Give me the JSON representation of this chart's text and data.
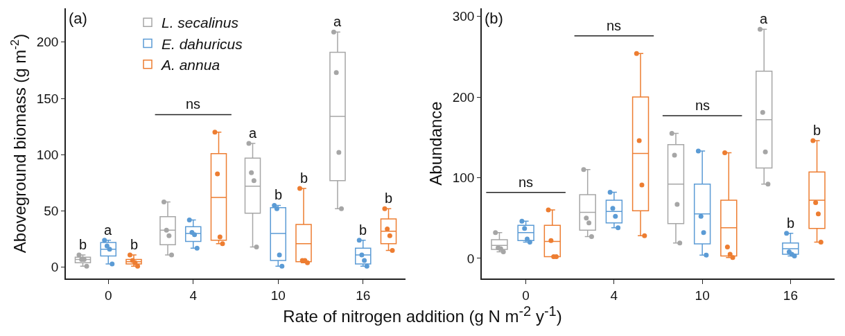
{
  "chart_data": [
    {
      "type": "box",
      "title": "(a)",
      "xlabel": "Rate of nitrogen addition (g N m$^{-2}$ y$^{-1}$)",
      "ylabel": "Aboveground biomass (g m$^{-2}$)",
      "categories": [
        "0",
        "4",
        "10",
        "16"
      ],
      "ylim": [
        -10,
        230
      ],
      "yticks": [
        0,
        50,
        100,
        150,
        200
      ],
      "grid": false,
      "legend": "top left",
      "marker": "circle",
      "annotations": [
        "ns"
      ],
      "series": [
        {
          "name": "L. secalinus",
          "color": "#a6a6a6",
          "value_labels": [
            "b",
            null,
            "a",
            "a"
          ],
          "boxes": [
            {
              "low": 1,
              "q1": 4,
              "median": 7,
              "q3": 9,
              "high": 11
            },
            {
              "low": 11,
              "q1": 20,
              "median": 33,
              "q3": 45,
              "high": 58
            },
            {
              "low": 18,
              "q1": 48,
              "median": 72,
              "q3": 97,
              "high": 110
            },
            {
              "low": 52,
              "q1": 77,
              "median": 134,
              "q3": 191,
              "high": 209
            }
          ]
        },
        {
          "type": "scatter",
          "color": "#a6a6a6",
          "x": [
            "0",
            "0",
            "0",
            "0",
            "4",
            "4",
            "4",
            "4",
            "10",
            "10",
            "10",
            "10",
            "16",
            "16",
            "16",
            "16"
          ],
          "values": [
            11,
            7,
            7,
            1,
            58,
            33,
            28,
            11,
            110,
            84,
            77,
            18,
            209,
            173,
            102,
            52
          ]
        },
        {
          "name": "E. dahuricus",
          "color": "#5b9bd5",
          "value_labels": [
            "a",
            null,
            "b",
            "b"
          ],
          "boxes": [
            {
              "low": 3,
              "q1": 10,
              "median": 16,
              "q3": 22,
              "high": 24
            },
            {
              "low": 17,
              "q1": 23,
              "median": 30,
              "q3": 36,
              "high": 42
            },
            {
              "low": 1,
              "q1": 6,
              "median": 30,
              "q3": 53,
              "high": 55
            },
            {
              "low": 1,
              "q1": 3,
              "median": 11,
              "q3": 17,
              "high": 24
            }
          ]
        },
        {
          "type": "scatter",
          "color": "#5b9bd5",
          "x": [
            "0",
            "0",
            "0",
            "0",
            "4",
            "4",
            "4",
            "4",
            "10",
            "10",
            "10",
            "10",
            "16",
            "16",
            "16",
            "16"
          ],
          "values": [
            24,
            19,
            16,
            3,
            42,
            31,
            29,
            17,
            55,
            52,
            11,
            1,
            24,
            11,
            6,
            1
          ]
        },
        {
          "name": "A. annua",
          "color": "#ed7d31",
          "value_labels": [
            "b",
            null,
            "b",
            "b"
          ],
          "boxes": [
            {
              "low": 1,
              "q1": 3,
              "median": 5,
              "q3": 7,
              "high": 11
            },
            {
              "low": 21,
              "q1": 24,
              "median": 62,
              "q3": 101,
              "high": 120
            },
            {
              "low": 4,
              "q1": 5,
              "median": 21,
              "q3": 38,
              "high": 70
            },
            {
              "low": 15,
              "q1": 21,
              "median": 32,
              "q3": 43,
              "high": 52
            }
          ]
        },
        {
          "type": "scatter",
          "color": "#ed7d31",
          "x": [
            "0",
            "0",
            "0",
            "0",
            "4",
            "4",
            "4",
            "4",
            "10",
            "10",
            "10",
            "10",
            "16",
            "16",
            "16",
            "16"
          ],
          "values": [
            11,
            6,
            4,
            1,
            120,
            83,
            27,
            21,
            70,
            6,
            6,
            4,
            52,
            34,
            28,
            15
          ]
        }
      ]
    },
    {
      "type": "box",
      "title": "(b)",
      "ylabel": "Abundance",
      "categories": [
        "0",
        "4",
        "10",
        "16"
      ],
      "ylim": [
        -25,
        310
      ],
      "yticks": [
        0,
        100,
        200,
        300
      ],
      "grid": false,
      "marker": "circle",
      "annotations": [
        "ns",
        "ns",
        "ns"
      ],
      "series": [
        {
          "color": "#a6a6a6",
          "value_labels": [
            null,
            null,
            null,
            "a"
          ],
          "boxes": [
            {
              "low": 8,
              "q1": 11,
              "median": 16,
              "q3": 23,
              "high": 32
            },
            {
              "low": 27,
              "q1": 35,
              "median": 57,
              "q3": 79,
              "high": 110
            },
            {
              "low": 19,
              "q1": 43,
              "median": 92,
              "q3": 141,
              "high": 155
            },
            {
              "low": 92,
              "q1": 112,
              "median": 172,
              "q3": 232,
              "high": 284
            }
          ]
        },
        {
          "type": "scatter",
          "color": "#a6a6a6",
          "x": [
            "0",
            "0",
            "0",
            "0",
            "4",
            "4",
            "4",
            "4",
            "10",
            "10",
            "10",
            "10",
            "16",
            "16",
            "16",
            "16"
          ],
          "values": [
            32,
            13,
            12,
            8,
            110,
            50,
            44,
            27,
            155,
            128,
            67,
            19,
            284,
            181,
            132,
            92
          ]
        },
        {
          "color": "#5b9bd5",
          "value_labels": [
            null,
            null,
            null,
            "b"
          ],
          "boxes": [
            {
              "low": 20,
              "q1": 22,
              "median": 32,
              "q3": 41,
              "high": 46
            },
            {
              "low": 38,
              "q1": 44,
              "median": 58,
              "q3": 72,
              "high": 82
            },
            {
              "low": 4,
              "q1": 18,
              "median": 55,
              "q3": 92,
              "high": 133
            },
            {
              "low": 3,
              "q1": 5,
              "median": 12,
              "q3": 19,
              "high": 31
            }
          ]
        },
        {
          "type": "scatter",
          "color": "#5b9bd5",
          "x": [
            "0",
            "0",
            "0",
            "0",
            "4",
            "4",
            "4",
            "4",
            "10",
            "10",
            "10",
            "10",
            "16",
            "16",
            "16",
            "16"
          ],
          "values": [
            46,
            37,
            24,
            20,
            82,
            62,
            52,
            38,
            133,
            52,
            32,
            4,
            31,
            8,
            5,
            3
          ]
        },
        {
          "color": "#ed7d31",
          "value_labels": [
            null,
            null,
            null,
            "b"
          ],
          "boxes": [
            {
              "low": 2,
              "q1": 2,
              "median": 21,
              "q3": 41,
              "high": 60
            },
            {
              "low": 28,
              "q1": 59,
              "median": 130,
              "q3": 200,
              "high": 254
            },
            {
              "low": 1,
              "q1": 3,
              "median": 38,
              "q3": 72,
              "high": 131
            },
            {
              "low": 20,
              "q1": 37,
              "median": 72,
              "q3": 107,
              "high": 146
            }
          ]
        },
        {
          "type": "scatter",
          "color": "#ed7d31",
          "x": [
            "0",
            "0",
            "0",
            "0",
            "4",
            "4",
            "4",
            "4",
            "10",
            "10",
            "10",
            "10",
            "16",
            "16",
            "16",
            "16"
          ],
          "values": [
            60,
            22,
            2,
            2,
            254,
            146,
            91,
            28,
            131,
            14,
            5,
            1,
            146,
            69,
            55,
            20
          ]
        }
      ]
    }
  ]
}
